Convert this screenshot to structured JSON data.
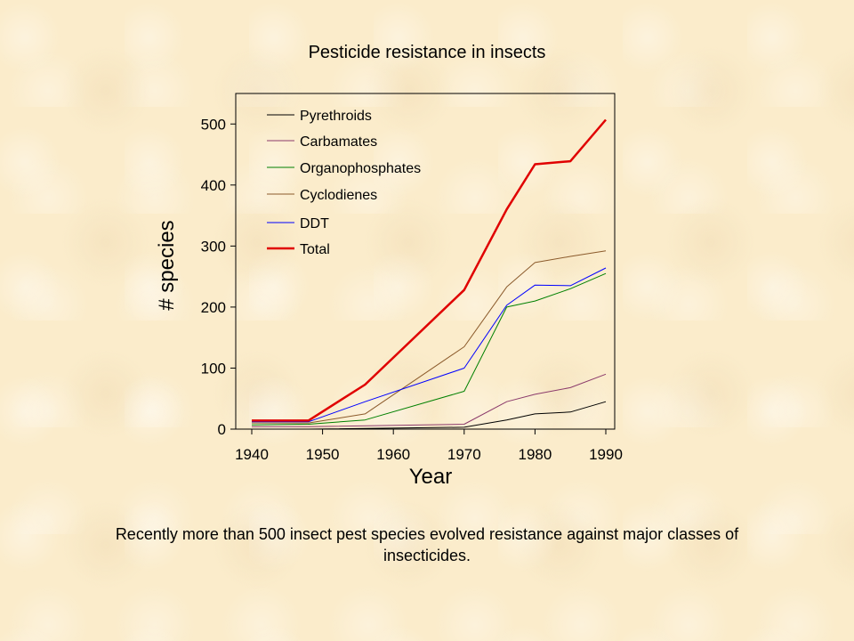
{
  "slide": {
    "title": "Pesticide resistance in insects",
    "caption": "Recently more than 500 insect pest species evolved resistance against major classes of insecticides."
  },
  "chart_data": {
    "type": "line",
    "title": "",
    "xlabel": "Year",
    "ylabel": "# species",
    "xlim": [
      1940,
      1990
    ],
    "ylim": [
      0,
      550
    ],
    "xticks": [
      1940,
      1950,
      1960,
      1970,
      1980,
      1990
    ],
    "yticks": [
      0,
      100,
      200,
      300,
      400,
      500
    ],
    "grid": false,
    "legend_position": "top-left",
    "series": [
      {
        "name": "Pyrethroids",
        "color": "#000000",
        "width": 1,
        "x": [
          1940,
          1948,
          1970,
          1976,
          1980,
          1985,
          1990
        ],
        "y": [
          0,
          0,
          3,
          15,
          25,
          28,
          45
        ]
      },
      {
        "name": "Carbamates",
        "color": "#8b3a6b",
        "width": 1,
        "x": [
          1940,
          1948,
          1970,
          1976,
          1980,
          1985,
          1990
        ],
        "y": [
          4,
          4,
          8,
          45,
          57,
          68,
          90
        ]
      },
      {
        "name": "Organophosphates",
        "color": "#008000",
        "width": 1,
        "x": [
          1940,
          1948,
          1956,
          1970,
          1976,
          1980,
          1985,
          1990
        ],
        "y": [
          7,
          8,
          15,
          62,
          200,
          210,
          230,
          255
        ]
      },
      {
        "name": "Cyclodienes",
        "color": "#8b5a2b",
        "width": 1,
        "x": [
          1940,
          1948,
          1956,
          1970,
          1976,
          1980,
          1985,
          1990
        ],
        "y": [
          10,
          10,
          25,
          135,
          233,
          273,
          283,
          292
        ]
      },
      {
        "name": "DDT",
        "color": "#0000ff",
        "width": 1,
        "x": [
          1940,
          1948,
          1956,
          1970,
          1976,
          1980,
          1985,
          1990
        ],
        "y": [
          12,
          12,
          45,
          100,
          203,
          236,
          235,
          264
        ]
      },
      {
        "name": "Total",
        "color": "#e00000",
        "width": 2.5,
        "x": [
          1940,
          1944,
          1948,
          1956,
          1970,
          1976,
          1980,
          1985,
          1990
        ],
        "y": [
          14,
          14,
          14,
          73,
          228,
          360,
          434,
          439,
          507
        ]
      }
    ]
  }
}
